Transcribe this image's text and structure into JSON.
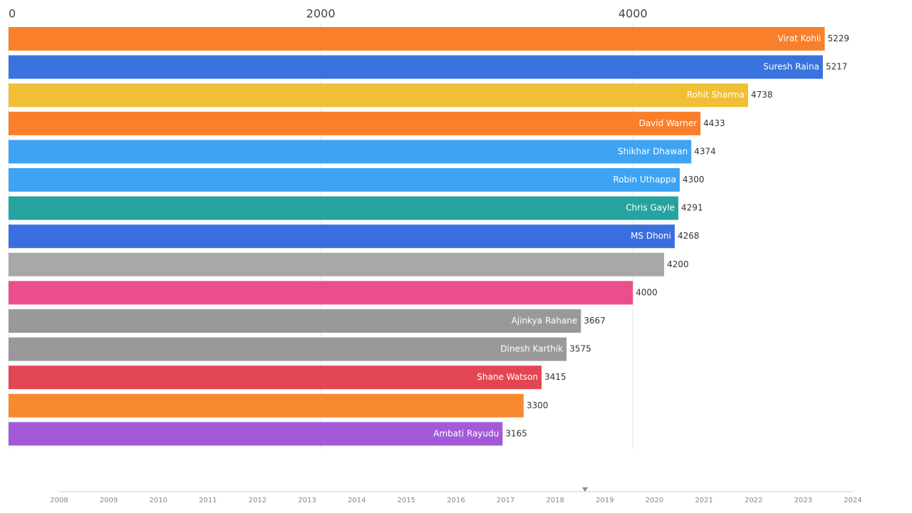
{
  "chart_data": {
    "type": "bar",
    "orientation": "horizontal",
    "categories": [
      "Virat Kohli",
      "Suresh Raina",
      "Rohit Sharma",
      "David Warner",
      "Shikhar Dhawan",
      "Robin Uthappa",
      "Chris Gayle",
      "MS Dhoni",
      null,
      null,
      "Ajinkya Rahane",
      "Dinesh Karthik",
      "Shane Watson",
      null,
      "Ambati Rayudu"
    ],
    "values": [
      5229,
      5217,
      4738,
      4433,
      4374,
      4300,
      4291,
      4268,
      4200,
      4000,
      3667,
      3575,
      3415,
      3300,
      3165
    ],
    "colors": [
      "#f97f2a",
      "#3a73dd",
      "#f1bf35",
      "#f97f2a",
      "#3ea3f2",
      "#3ea3f2",
      "#26a39f",
      "#3a6fdf",
      "#a8a8a8",
      "#ea4f8b",
      "#999999",
      "#999999",
      "#e34653",
      "#f78a2e",
      "#a35ad8"
    ],
    "xlim": [
      0,
      5400
    ],
    "xticks": [
      0,
      2000,
      4000
    ],
    "grid": true,
    "timeline": {
      "xlim": [
        2008,
        2024
      ],
      "ticks": [
        2008,
        2009,
        2010,
        2011,
        2012,
        2013,
        2014,
        2015,
        2016,
        2017,
        2018,
        2019,
        2020,
        2021,
        2022,
        2023,
        2024
      ],
      "current": 2018.6
    }
  }
}
